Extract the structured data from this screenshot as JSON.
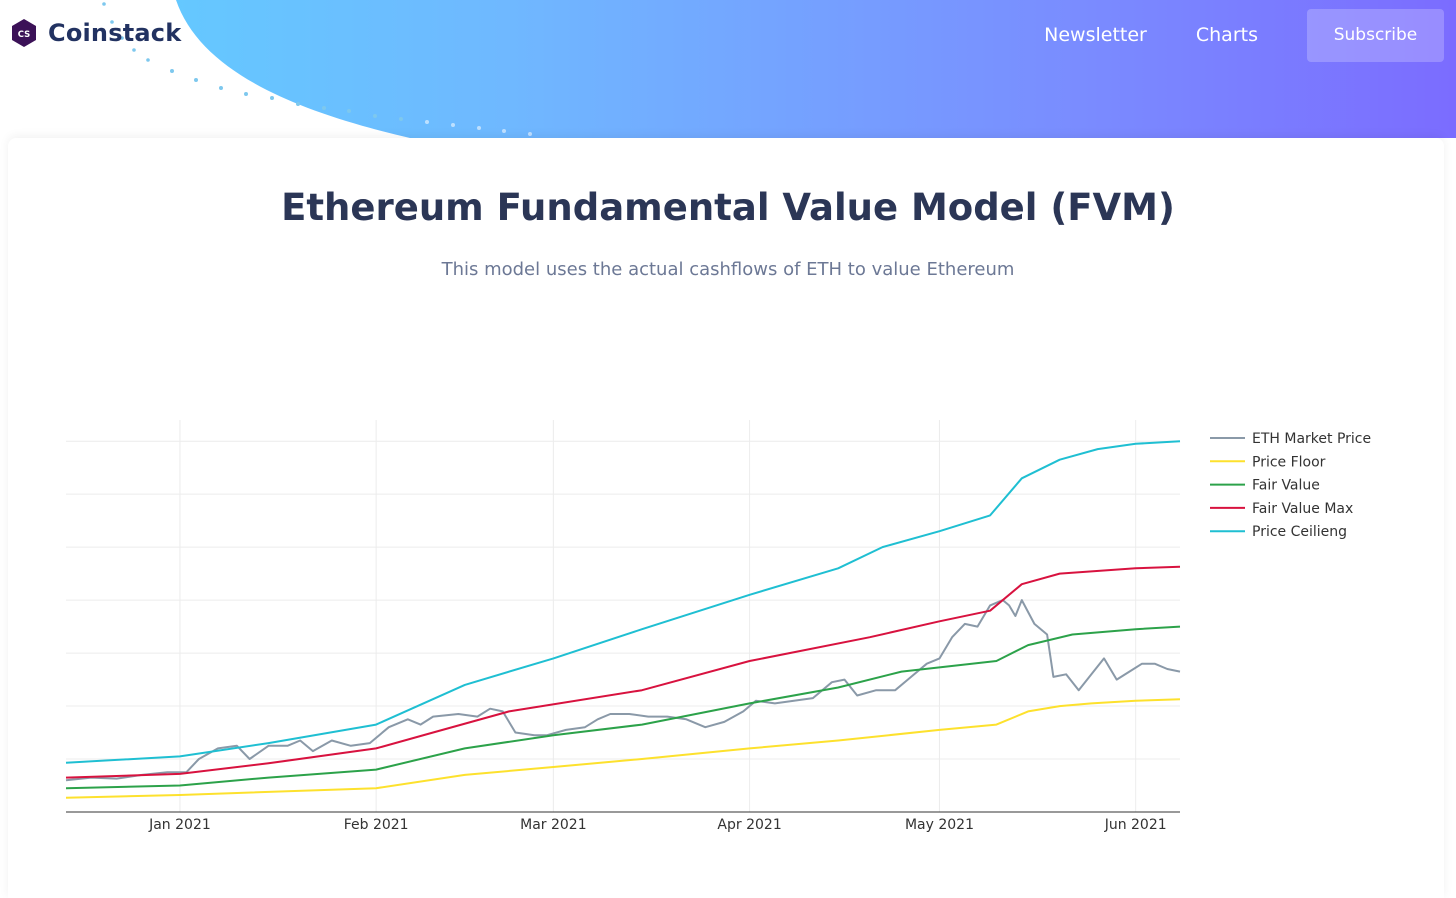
{
  "brand": {
    "logo_mark": "CS",
    "name": "Coinstack"
  },
  "nav": {
    "items": [
      "Newsletter",
      "Charts"
    ],
    "subscribe_label": "Subscribe"
  },
  "page": {
    "title": "Ethereum Fundamental Value Model (FVM)",
    "subtitle": "This model uses the actual cashflows of ETH to value Ethereum"
  },
  "colors": {
    "eth_market_price": "#8a99a8",
    "price_floor": "#fde12d",
    "fair_value": "#2ca24a",
    "fair_value_max": "#d8123f",
    "price_ceiling": "#1fbfd2",
    "grid": "#ececec",
    "axis": "#333333"
  },
  "chart_data": {
    "type": "line",
    "title": "",
    "xlabel": "",
    "ylabel": "",
    "x_ticks": [
      {
        "label": "Jan 2021",
        "date": "2021-01-01"
      },
      {
        "label": "Feb 2021",
        "date": "2021-02-01"
      },
      {
        "label": "Mar 2021",
        "date": "2021-03-01"
      },
      {
        "label": "Apr 2021",
        "date": "2021-04-01"
      },
      {
        "label": "May 2021",
        "date": "2021-05-01"
      },
      {
        "label": "Jun 2021",
        "date": "2021-06-01"
      }
    ],
    "xlim": [
      "2020-12-14",
      "2021-06-08"
    ],
    "ylim": [
      0,
      7.4
    ],
    "y_gridlines": [
      1,
      2,
      3,
      4,
      5,
      6,
      7
    ],
    "y_tick_labels_visible": false,
    "grid": true,
    "legend_position": "right",
    "series": [
      {
        "name": "ETH Market Price",
        "color_key": "eth_market_price",
        "points": [
          [
            "2020-12-14",
            0.6
          ],
          [
            "2020-12-18",
            0.65
          ],
          [
            "2020-12-22",
            0.63
          ],
          [
            "2020-12-26",
            0.7
          ],
          [
            "2020-12-30",
            0.75
          ],
          [
            "2021-01-02",
            0.75
          ],
          [
            "2021-01-04",
            1.0
          ],
          [
            "2021-01-07",
            1.2
          ],
          [
            "2021-01-10",
            1.25
          ],
          [
            "2021-01-12",
            1.0
          ],
          [
            "2021-01-15",
            1.25
          ],
          [
            "2021-01-18",
            1.25
          ],
          [
            "2021-01-20",
            1.35
          ],
          [
            "2021-01-22",
            1.15
          ],
          [
            "2021-01-25",
            1.35
          ],
          [
            "2021-01-28",
            1.25
          ],
          [
            "2021-01-31",
            1.3
          ],
          [
            "2021-02-03",
            1.6
          ],
          [
            "2021-02-06",
            1.75
          ],
          [
            "2021-02-08",
            1.65
          ],
          [
            "2021-02-10",
            1.8
          ],
          [
            "2021-02-14",
            1.85
          ],
          [
            "2021-02-17",
            1.8
          ],
          [
            "2021-02-19",
            1.95
          ],
          [
            "2021-02-21",
            1.9
          ],
          [
            "2021-02-23",
            1.5
          ],
          [
            "2021-02-26",
            1.45
          ],
          [
            "2021-02-28",
            1.45
          ],
          [
            "2021-03-03",
            1.55
          ],
          [
            "2021-03-06",
            1.6
          ],
          [
            "2021-03-08",
            1.75
          ],
          [
            "2021-03-10",
            1.85
          ],
          [
            "2021-03-13",
            1.85
          ],
          [
            "2021-03-16",
            1.8
          ],
          [
            "2021-03-19",
            1.8
          ],
          [
            "2021-03-22",
            1.75
          ],
          [
            "2021-03-25",
            1.6
          ],
          [
            "2021-03-28",
            1.7
          ],
          [
            "2021-03-31",
            1.9
          ],
          [
            "2021-04-02",
            2.1
          ],
          [
            "2021-04-05",
            2.05
          ],
          [
            "2021-04-08",
            2.1
          ],
          [
            "2021-04-11",
            2.15
          ],
          [
            "2021-04-14",
            2.45
          ],
          [
            "2021-04-16",
            2.5
          ],
          [
            "2021-04-18",
            2.2
          ],
          [
            "2021-04-21",
            2.3
          ],
          [
            "2021-04-24",
            2.3
          ],
          [
            "2021-04-26",
            2.5
          ],
          [
            "2021-04-29",
            2.8
          ],
          [
            "2021-05-01",
            2.9
          ],
          [
            "2021-05-03",
            3.3
          ],
          [
            "2021-05-05",
            3.55
          ],
          [
            "2021-05-07",
            3.5
          ],
          [
            "2021-05-09",
            3.9
          ],
          [
            "2021-05-11",
            4.0
          ],
          [
            "2021-05-12",
            3.9
          ],
          [
            "2021-05-13",
            3.7
          ],
          [
            "2021-05-14",
            4.0
          ],
          [
            "2021-05-16",
            3.55
          ],
          [
            "2021-05-18",
            3.35
          ],
          [
            "2021-05-19",
            2.55
          ],
          [
            "2021-05-21",
            2.6
          ],
          [
            "2021-05-23",
            2.3
          ],
          [
            "2021-05-25",
            2.6
          ],
          [
            "2021-05-27",
            2.9
          ],
          [
            "2021-05-29",
            2.5
          ],
          [
            "2021-05-31",
            2.65
          ],
          [
            "2021-06-02",
            2.8
          ],
          [
            "2021-06-04",
            2.8
          ],
          [
            "2021-06-06",
            2.7
          ],
          [
            "2021-06-08",
            2.65
          ]
        ]
      },
      {
        "name": "Price Floor",
        "color_key": "price_floor",
        "points": [
          [
            "2020-12-14",
            0.27
          ],
          [
            "2021-01-01",
            0.32
          ],
          [
            "2021-02-01",
            0.45
          ],
          [
            "2021-02-15",
            0.7
          ],
          [
            "2021-03-01",
            0.85
          ],
          [
            "2021-03-15",
            1.0
          ],
          [
            "2021-04-01",
            1.2
          ],
          [
            "2021-04-15",
            1.35
          ],
          [
            "2021-05-01",
            1.55
          ],
          [
            "2021-05-10",
            1.65
          ],
          [
            "2021-05-15",
            1.9
          ],
          [
            "2021-05-20",
            2.0
          ],
          [
            "2021-05-25",
            2.05
          ],
          [
            "2021-06-01",
            2.1
          ],
          [
            "2021-06-08",
            2.13
          ]
        ]
      },
      {
        "name": "Fair Value",
        "color_key": "fair_value",
        "points": [
          [
            "2020-12-14",
            0.45
          ],
          [
            "2021-01-01",
            0.5
          ],
          [
            "2021-01-15",
            0.65
          ],
          [
            "2021-02-01",
            0.8
          ],
          [
            "2021-02-15",
            1.2
          ],
          [
            "2021-03-01",
            1.45
          ],
          [
            "2021-03-15",
            1.65
          ],
          [
            "2021-04-01",
            2.05
          ],
          [
            "2021-04-15",
            2.35
          ],
          [
            "2021-04-25",
            2.65
          ],
          [
            "2021-05-10",
            2.85
          ],
          [
            "2021-05-15",
            3.15
          ],
          [
            "2021-05-22",
            3.35
          ],
          [
            "2021-06-01",
            3.45
          ],
          [
            "2021-06-08",
            3.5
          ]
        ]
      },
      {
        "name": "Fair Value Max",
        "color_key": "fair_value_max",
        "points": [
          [
            "2020-12-14",
            0.65
          ],
          [
            "2021-01-01",
            0.72
          ],
          [
            "2021-01-15",
            0.92
          ],
          [
            "2021-02-01",
            1.2
          ],
          [
            "2021-02-10",
            1.5
          ],
          [
            "2021-02-22",
            1.9
          ],
          [
            "2021-03-15",
            2.3
          ],
          [
            "2021-04-01",
            2.85
          ],
          [
            "2021-04-20",
            3.3
          ],
          [
            "2021-05-01",
            3.6
          ],
          [
            "2021-05-09",
            3.8
          ],
          [
            "2021-05-14",
            4.3
          ],
          [
            "2021-05-20",
            4.5
          ],
          [
            "2021-06-01",
            4.6
          ],
          [
            "2021-06-08",
            4.63
          ]
        ]
      },
      {
        "name": "Price Ceilieng",
        "color_key": "price_ceiling",
        "points": [
          [
            "2020-12-14",
            0.93
          ],
          [
            "2021-01-01",
            1.05
          ],
          [
            "2021-01-15",
            1.3
          ],
          [
            "2021-02-01",
            1.65
          ],
          [
            "2021-02-15",
            2.4
          ],
          [
            "2021-03-01",
            2.9
          ],
          [
            "2021-03-15",
            3.45
          ],
          [
            "2021-04-01",
            4.1
          ],
          [
            "2021-04-15",
            4.6
          ],
          [
            "2021-04-22",
            5.0
          ],
          [
            "2021-05-01",
            5.3
          ],
          [
            "2021-05-09",
            5.6
          ],
          [
            "2021-05-14",
            6.3
          ],
          [
            "2021-05-20",
            6.65
          ],
          [
            "2021-05-26",
            6.85
          ],
          [
            "2021-06-01",
            6.95
          ],
          [
            "2021-06-08",
            7.0
          ]
        ]
      }
    ]
  }
}
